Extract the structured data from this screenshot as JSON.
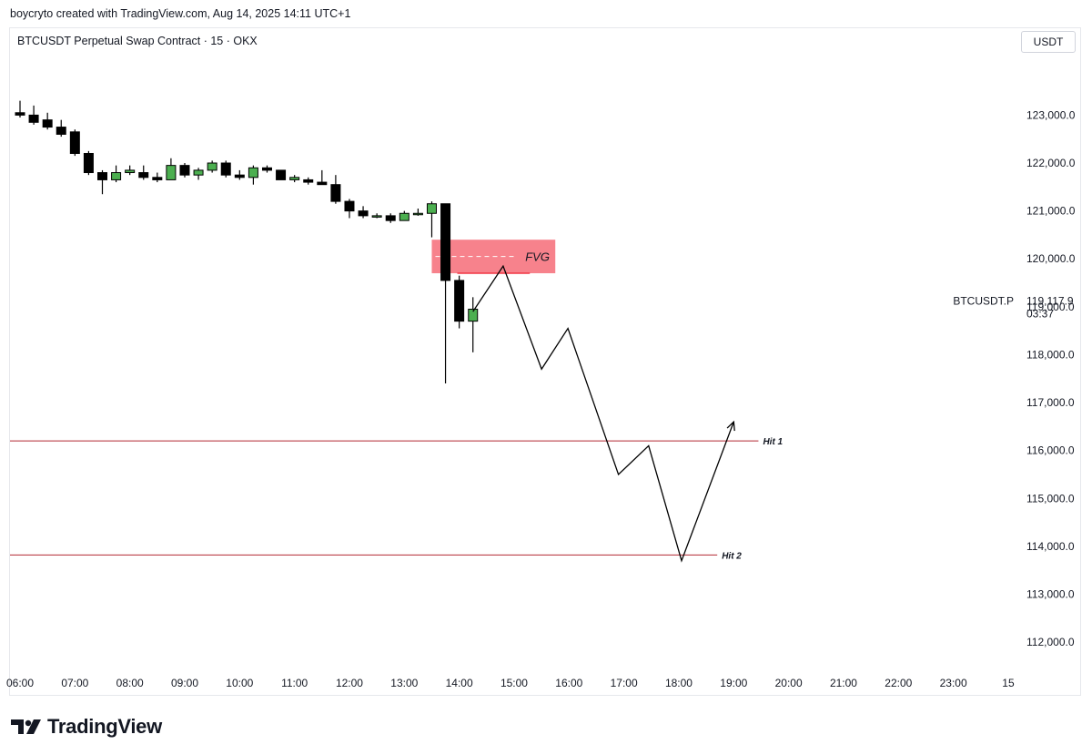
{
  "credit": "boycryto created with TradingView.com, Aug 14, 2025 14:11 UTC+1",
  "legend": "BTCUSDT Perpetual Swap Contract · 15 · OKX",
  "currency_button": "USDT",
  "brand": {
    "name": "TradingView",
    "logo_icon": "tradingview-logo-icon"
  },
  "colors": {
    "up": "#4caf50",
    "down": "#000000",
    "fvg": "#f23645",
    "level_line": "#b22833",
    "path": "#000000"
  },
  "chart_data": {
    "type": "candlestick",
    "symbol": "BTCUSDT Perpetual Swap Contract",
    "interval": "15",
    "exchange": "OKX",
    "y_range": [
      111300,
      124300
    ],
    "y_ticks": [
      112000,
      113000,
      114000,
      115000,
      116000,
      117000,
      118000,
      119000,
      120000,
      121000,
      122000,
      123000
    ],
    "y_tick_labels": [
      "112,000.0",
      "113,000.0",
      "114,000.0",
      "115,000.0",
      "116,000.0",
      "117,000.0",
      "118,000.0",
      "119,000.0",
      "120,000.0",
      "121,000.0",
      "122,000.0",
      "123,000.0"
    ],
    "x_ticks": [
      6,
      7,
      8,
      9,
      10,
      11,
      12,
      13,
      14,
      15,
      16,
      17,
      18,
      19,
      20,
      21,
      22,
      23,
      24
    ],
    "x_tick_labels": [
      "06:00",
      "07:00",
      "08:00",
      "09:00",
      "10:00",
      "11:00",
      "12:00",
      "13:00",
      "14:00",
      "15:00",
      "16:00",
      "17:00",
      "18:00",
      "19:00",
      "20:00",
      "21:00",
      "22:00",
      "23:00",
      "15"
    ],
    "x_range": [
      6,
      24.15
    ],
    "candles": [
      {
        "t": 6.0,
        "o": 123050,
        "h": 123300,
        "l": 122950,
        "c": 123000
      },
      {
        "t": 6.25,
        "o": 123000,
        "h": 123200,
        "l": 122800,
        "c": 122850
      },
      {
        "t": 6.5,
        "o": 122900,
        "h": 123050,
        "l": 122700,
        "c": 122750
      },
      {
        "t": 6.75,
        "o": 122750,
        "h": 122900,
        "l": 122550,
        "c": 122600
      },
      {
        "t": 7.0,
        "o": 122650,
        "h": 122700,
        "l": 122150,
        "c": 122200
      },
      {
        "t": 7.25,
        "o": 122200,
        "h": 122250,
        "l": 121750,
        "c": 121800
      },
      {
        "t": 7.5,
        "o": 121800,
        "h": 121850,
        "l": 121350,
        "c": 121650
      },
      {
        "t": 7.75,
        "o": 121650,
        "h": 121950,
        "l": 121600,
        "c": 121800
      },
      {
        "t": 8.0,
        "o": 121800,
        "h": 121950,
        "l": 121750,
        "c": 121850
      },
      {
        "t": 8.25,
        "o": 121800,
        "h": 121950,
        "l": 121650,
        "c": 121700
      },
      {
        "t": 8.5,
        "o": 121700,
        "h": 121800,
        "l": 121600,
        "c": 121650
      },
      {
        "t": 8.75,
        "o": 121650,
        "h": 122100,
        "l": 121650,
        "c": 121950
      },
      {
        "t": 9.0,
        "o": 121950,
        "h": 122000,
        "l": 121700,
        "c": 121750
      },
      {
        "t": 9.25,
        "o": 121750,
        "h": 121900,
        "l": 121650,
        "c": 121850
      },
      {
        "t": 9.5,
        "o": 121850,
        "h": 122050,
        "l": 121800,
        "c": 122000
      },
      {
        "t": 9.75,
        "o": 122000,
        "h": 122050,
        "l": 121700,
        "c": 121750
      },
      {
        "t": 10.0,
        "o": 121750,
        "h": 121850,
        "l": 121650,
        "c": 121700
      },
      {
        "t": 10.25,
        "o": 121700,
        "h": 121950,
        "l": 121550,
        "c": 121900
      },
      {
        "t": 10.5,
        "o": 121900,
        "h": 121950,
        "l": 121800,
        "c": 121850
      },
      {
        "t": 10.75,
        "o": 121850,
        "h": 121850,
        "l": 121650,
        "c": 121650
      },
      {
        "t": 11.0,
        "o": 121650,
        "h": 121750,
        "l": 121600,
        "c": 121700
      },
      {
        "t": 11.25,
        "o": 121650,
        "h": 121700,
        "l": 121550,
        "c": 121600
      },
      {
        "t": 11.5,
        "o": 121600,
        "h": 121850,
        "l": 121550,
        "c": 121550
      },
      {
        "t": 11.75,
        "o": 121550,
        "h": 121750,
        "l": 121150,
        "c": 121200
      },
      {
        "t": 12.0,
        "o": 121200,
        "h": 121250,
        "l": 120850,
        "c": 121000
      },
      {
        "t": 12.25,
        "o": 121000,
        "h": 121100,
        "l": 120850,
        "c": 120900
      },
      {
        "t": 12.5,
        "o": 120900,
        "h": 120950,
        "l": 120850,
        "c": 120900
      },
      {
        "t": 12.75,
        "o": 120900,
        "h": 120950,
        "l": 120750,
        "c": 120800
      },
      {
        "t": 13.0,
        "o": 120800,
        "h": 121000,
        "l": 120800,
        "c": 120950
      },
      {
        "t": 13.25,
        "o": 120950,
        "h": 121050,
        "l": 120900,
        "c": 120950
      },
      {
        "t": 13.5,
        "o": 120950,
        "h": 121200,
        "l": 120450,
        "c": 121150
      },
      {
        "t": 13.75,
        "o": 121150,
        "h": 121150,
        "l": 117400,
        "c": 119550
      },
      {
        "t": 14.0,
        "o": 119550,
        "h": 119650,
        "l": 118550,
        "c": 118700
      },
      {
        "t": 14.25,
        "o": 118700,
        "h": 119200,
        "l": 118050,
        "c": 118950
      }
    ],
    "fvg": {
      "label": "FVG",
      "t_start": 13.5,
      "t_end": 15.75,
      "top": 120400,
      "bottom": 119700,
      "mid": 120050
    },
    "projection_path": [
      {
        "t": 14.25,
        "y": 118900
      },
      {
        "t": 14.8,
        "y": 119850
      },
      {
        "t": 15.5,
        "y": 117700
      },
      {
        "t": 15.98,
        "y": 118550
      },
      {
        "t": 16.9,
        "y": 115500
      },
      {
        "t": 17.45,
        "y": 116100
      },
      {
        "t": 18.05,
        "y": 113700
      },
      {
        "t": 19.0,
        "y": 116600
      }
    ],
    "levels": [
      {
        "label": "Hit 1",
        "y": 116200,
        "t_end": 19.45
      },
      {
        "label": "Hit 2",
        "y": 113820,
        "t_end": 18.7
      }
    ],
    "price_label": {
      "symbol": "BTCUSDT.P",
      "value": "119,117.9",
      "countdown": "03:37",
      "y": 119117.9
    }
  }
}
